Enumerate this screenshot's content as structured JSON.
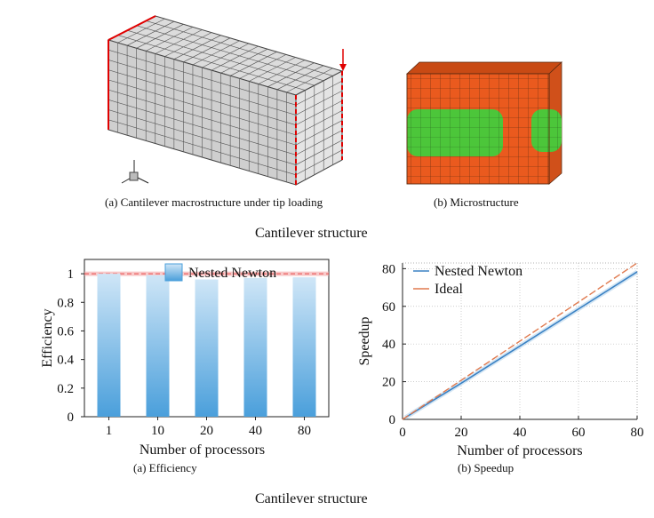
{
  "top": {
    "caption_a": "(a) Cantilever macrostructure under tip loading",
    "caption_b": "(b) Microstructure",
    "section_title": "Cantilever structure"
  },
  "bottom": {
    "caption_a": "(a) Efficiency",
    "caption_b": "(b) Speedup",
    "section_title": "Cantilever structure"
  },
  "colors": {
    "bar": "#4a9fdb",
    "nested": "#3b82c4",
    "ideal": "#e07a4f",
    "mesh_gray": "#d4d4d4",
    "micro_orange": "#ea5a1e",
    "micro_green": "#4cc63a",
    "load_red": "#e00000"
  },
  "icons": {
    "axes_triad": "coordinate-triad-icon"
  },
  "chart_data": [
    {
      "type": "bar",
      "categories": [
        "1",
        "10",
        "20",
        "40",
        "80"
      ],
      "series": [
        {
          "name": "Nested Newton",
          "values": [
            1.0,
            0.99,
            0.96,
            0.97,
            0.975
          ]
        }
      ],
      "reference_line": 1,
      "xlabel": "Number of processors",
      "ylabel": "Efficiency",
      "ylim": [
        0,
        1.1
      ],
      "yticks": [
        "0",
        "0.2",
        "0.4",
        "0.6",
        "0.8",
        "1"
      ],
      "legend": "top-right"
    },
    {
      "type": "line",
      "series": [
        {
          "name": "Nested Newton",
          "x": [
            1,
            10,
            20,
            40,
            60,
            80
          ],
          "y": [
            1,
            9.7,
            19.2,
            38.9,
            58.6,
            78.3
          ]
        },
        {
          "name": "Ideal",
          "x": [
            0,
            80
          ],
          "y": [
            0,
            83
          ]
        }
      ],
      "xlabel": "Number of processors",
      "ylabel": "Speedup",
      "xlim": [
        0,
        80
      ],
      "ylim": [
        0,
        83
      ],
      "xticks": [
        "0",
        "20",
        "40",
        "60",
        "80"
      ],
      "yticks": [
        "0",
        "20",
        "40",
        "60",
        "80"
      ],
      "grid": "dotted",
      "legend": "top-left"
    }
  ]
}
